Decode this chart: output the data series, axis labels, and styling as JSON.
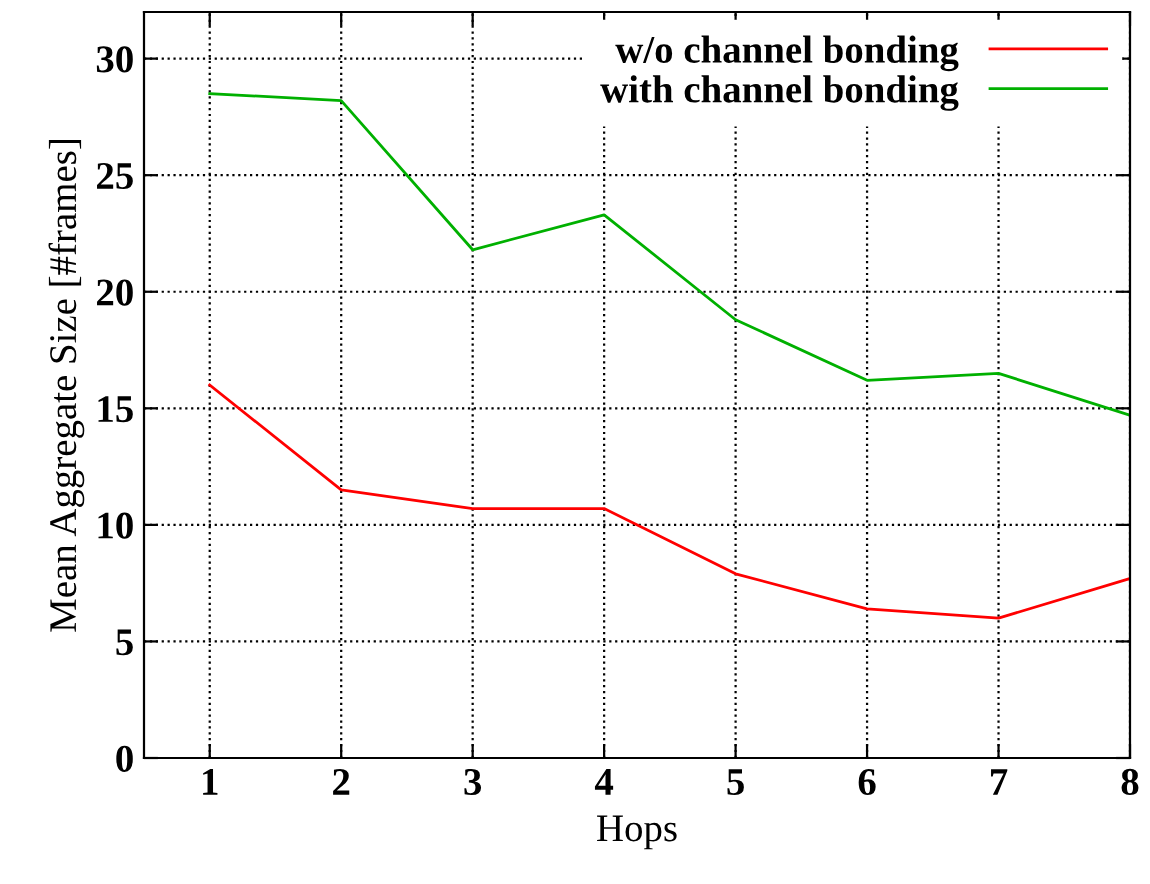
{
  "chart_data": {
    "type": "line",
    "xlabel": "Hops",
    "ylabel": "Mean Aggregate Size [#frames]",
    "x": [
      1,
      2,
      3,
      4,
      5,
      6,
      7,
      8
    ],
    "series": [
      {
        "name": "w/o channel bonding",
        "color": "#ff0000",
        "values": [
          16.0,
          11.5,
          10.7,
          10.7,
          7.9,
          6.4,
          6.0,
          7.7
        ]
      },
      {
        "name": "with channel bonding",
        "color": "#00b000",
        "values": [
          28.5,
          28.2,
          21.8,
          23.3,
          18.8,
          16.2,
          16.5,
          14.7
        ]
      }
    ],
    "xlim": [
      0.5,
      8
    ],
    "xticks": [
      1,
      2,
      3,
      4,
      5,
      6,
      7,
      8
    ],
    "ylim": [
      0,
      32
    ],
    "yticks": [
      0,
      5,
      10,
      15,
      20,
      25,
      30
    ],
    "grid": true,
    "legend": "top right",
    "marker": "none",
    "line_style": "solid"
  }
}
